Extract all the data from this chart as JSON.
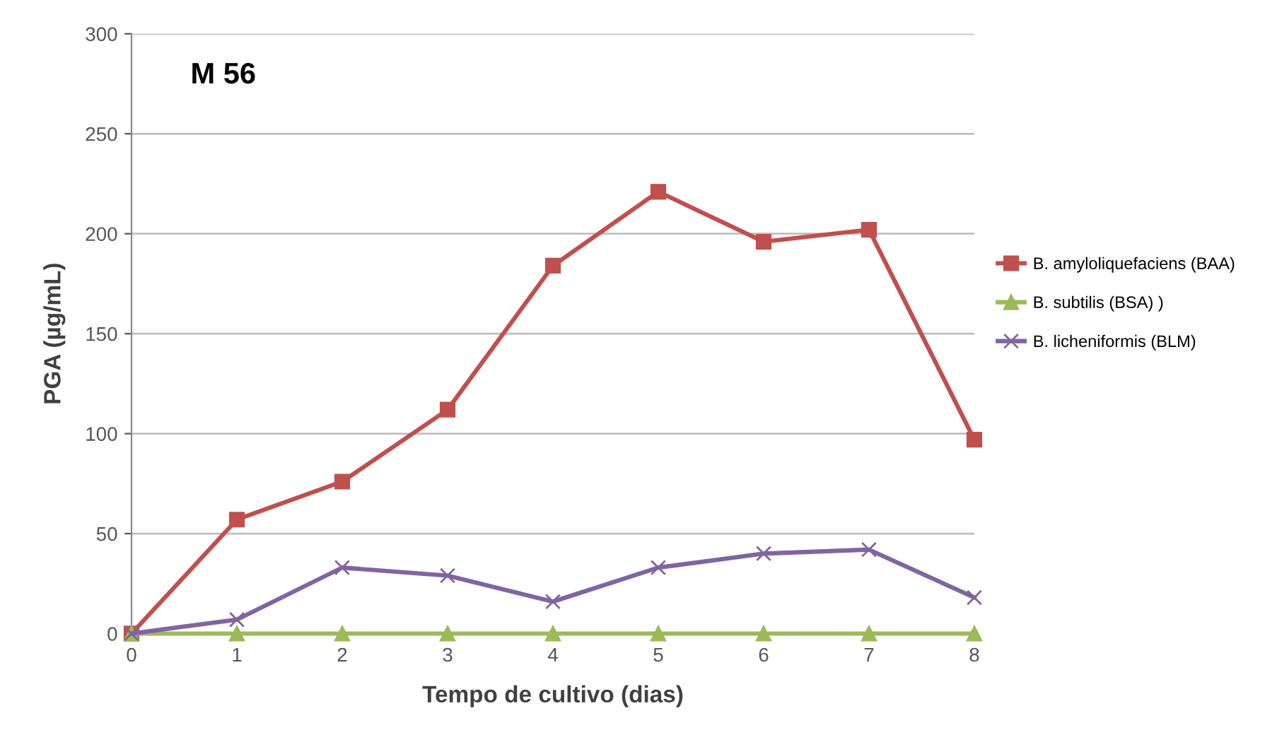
{
  "chart_data": {
    "type": "line",
    "xlabel": "Tempo de cultivo (dias)",
    "ylabel": "PGA (µg/mL)",
    "annotations": [
      "M 56"
    ],
    "x": [
      0,
      1,
      2,
      3,
      4,
      5,
      6,
      7,
      8
    ],
    "xlim": [
      0,
      8
    ],
    "xticks": [
      0,
      1,
      2,
      3,
      4,
      5,
      6,
      7,
      8
    ],
    "ylim": [
      0,
      300
    ],
    "yticks": [
      0,
      50,
      100,
      150,
      200,
      250,
      300
    ],
    "grid": "y",
    "legend": "right",
    "series": [
      {
        "name": "B. amyloliquefaciens (BAA)",
        "color": "#c0504d",
        "marker": "square",
        "values": [
          0,
          57,
          76,
          112,
          184,
          221,
          196,
          202,
          97
        ]
      },
      {
        "name": "B. subtilis (BSA) )",
        "color": "#9bbb59",
        "marker": "triangle",
        "values": [
          0,
          0,
          0,
          0,
          0,
          0,
          0,
          0,
          0
        ]
      },
      {
        "name": "B. licheniformis (BLM)",
        "color": "#8064a2",
        "marker": "cross",
        "values": [
          0,
          7,
          33,
          29,
          16,
          33,
          40,
          42,
          18
        ]
      }
    ]
  }
}
